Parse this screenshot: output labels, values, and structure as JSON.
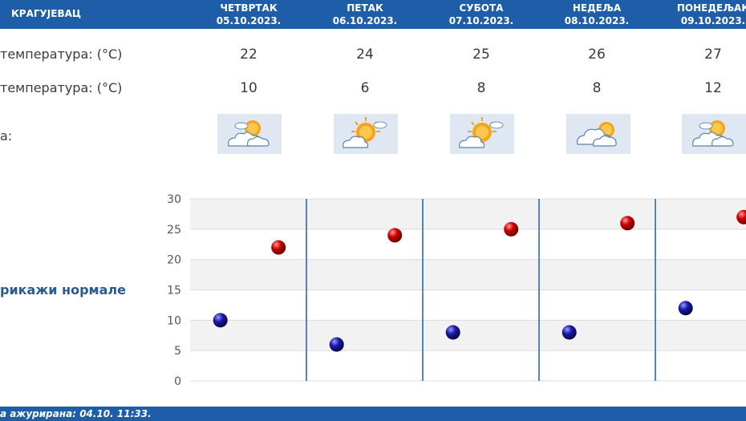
{
  "header": {
    "city": "КРАГУЈЕВАЦ",
    "days": [
      {
        "name": "ЧЕТВРТАК",
        "date": "05.10.2023."
      },
      {
        "name": "ПЕТАК",
        "date": "06.10.2023."
      },
      {
        "name": "СУБОТА",
        "date": "07.10.2023."
      },
      {
        "name": "НЕДЕЉА",
        "date": "08.10.2023."
      },
      {
        "name": "ПОНЕДЕЉАК",
        "date": "09.10.2023."
      }
    ]
  },
  "rows": {
    "max_label": "температура: (°C)",
    "min_label": "температура: (°C)",
    "weather_label": "а:",
    "max_values": [
      "22",
      "24",
      "25",
      "26",
      "27"
    ],
    "min_values": [
      "10",
      "6",
      "8",
      "8",
      "12"
    ],
    "weather_icons": [
      "sun-behind-clouds-icon",
      "sun-with-cloud-icon",
      "sun-with-cloud-icon",
      "clouds-with-sun-icon",
      "sun-behind-clouds-icon"
    ]
  },
  "normals_toggle": "рикажи нормале",
  "chart_data": {
    "type": "scatter",
    "categories": [
      "05.10.2023.",
      "06.10.2023.",
      "07.10.2023.",
      "08.10.2023.",
      "09.10.2023."
    ],
    "series": [
      {
        "values": [
          22,
          24,
          25,
          26,
          27
        ],
        "color": "#cc0000"
      },
      {
        "values": [
          10,
          6,
          8,
          8,
          12
        ],
        "color": "#1a1aa8"
      }
    ],
    "yticks": [
      "0",
      "5",
      "10",
      "15",
      "20",
      "25",
      "30"
    ],
    "ylim": [
      0,
      30
    ],
    "grid": true
  },
  "footer": {
    "updated": "а ажурирана:  04.10. 11:33."
  },
  "colors": {
    "brand": "#1e5ea8",
    "max_marker": "#cc0000",
    "min_marker": "#1a1aa8"
  }
}
